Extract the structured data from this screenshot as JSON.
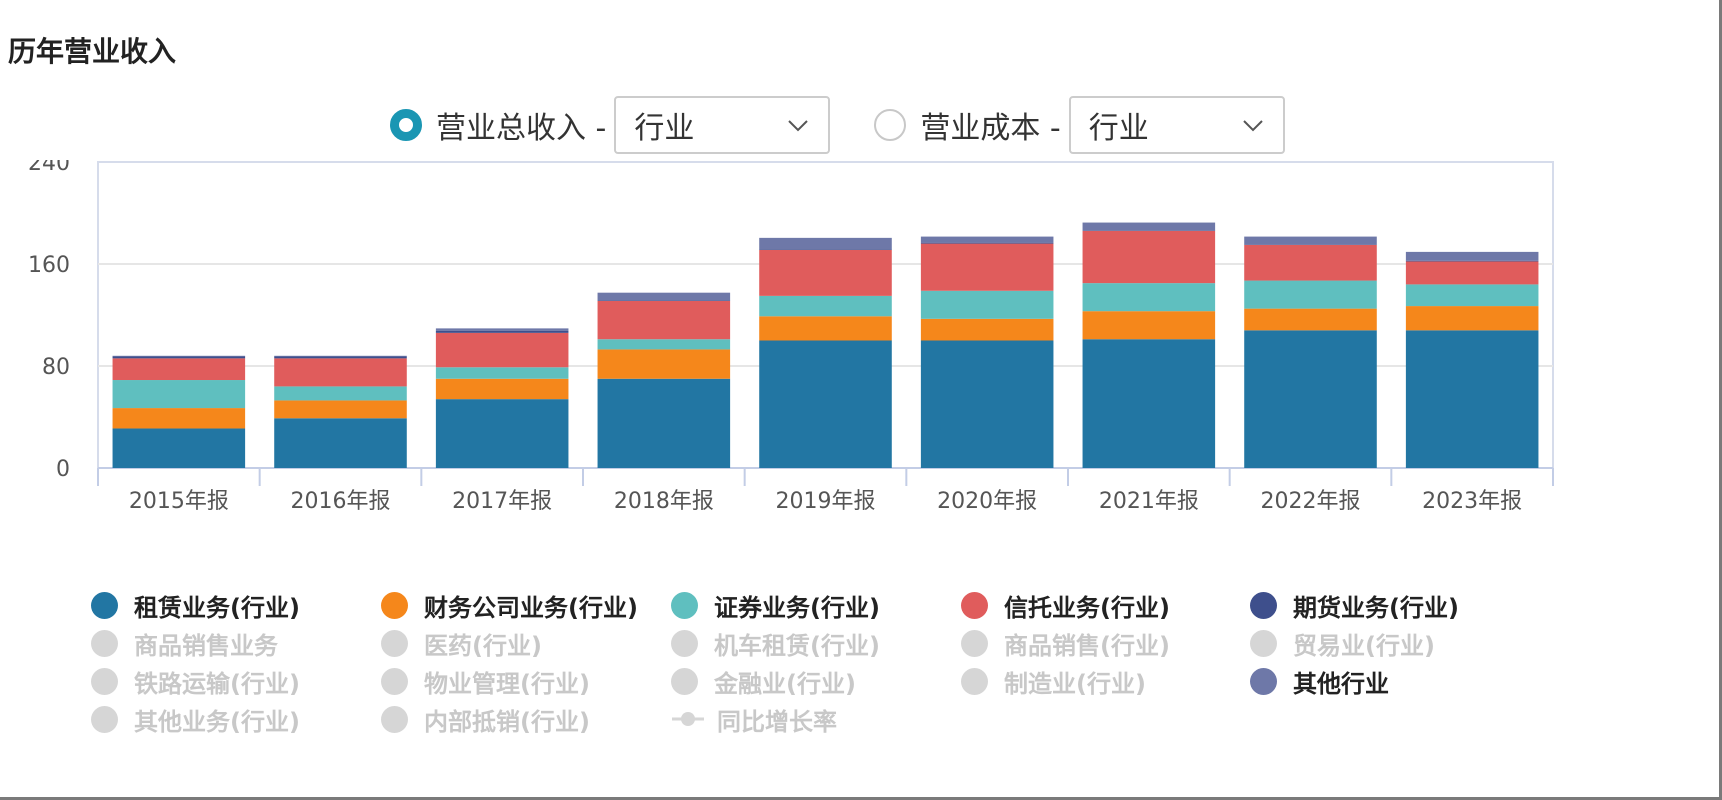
{
  "header": {
    "title": "历年营业收入"
  },
  "controls": {
    "option1": {
      "label": "营业总收入 -",
      "select_value": "行业",
      "selected": true
    },
    "option2": {
      "label": "营业成本 -",
      "select_value": "行业",
      "selected": false
    }
  },
  "chart_data": {
    "type": "bar",
    "stacked": true,
    "categories": [
      "2015年报",
      "2016年报",
      "2017年报",
      "2018年报",
      "2019年报",
      "2020年报",
      "2021年报",
      "2022年报",
      "2023年报"
    ],
    "ylim": [
      0,
      240
    ],
    "yticks": [
      "0",
      "80",
      "160",
      "240"
    ],
    "grid": true,
    "series": [
      {
        "name": "租赁业务(行业)",
        "color": "#2276a3",
        "values": [
          31,
          39,
          54,
          70,
          100,
          100,
          101,
          108,
          108
        ]
      },
      {
        "name": "财务公司业务(行业)",
        "color": "#f5871b",
        "values": [
          16,
          14,
          16,
          23,
          19,
          17,
          22,
          17,
          19
        ]
      },
      {
        "name": "证券业务(行业)",
        "color": "#5fbfbf",
        "values": [
          22,
          11,
          9,
          8,
          16,
          22,
          22,
          22,
          17
        ]
      },
      {
        "name": "信托业务(行业)",
        "color": "#e05c5c",
        "values": [
          17,
          22,
          27,
          30,
          36,
          37,
          41,
          28,
          18
        ]
      },
      {
        "name": "期货业务(行业)",
        "color": "#3e4f8c",
        "values": [
          1.5,
          1.5,
          1.5,
          0.5,
          0.5,
          0.5,
          0.5,
          0.5,
          0.5
        ]
      },
      {
        "name": "其他行业",
        "color": "#6e78a8",
        "values": [
          0.5,
          0.5,
          2,
          6,
          9,
          5,
          6,
          6,
          7
        ]
      }
    ]
  },
  "legend": {
    "items": [
      {
        "label": "租赁业务(行业)",
        "color": "#2276a3",
        "active": true
      },
      {
        "label": "财务公司业务(行业)",
        "color": "#f5871b",
        "active": true
      },
      {
        "label": "证券业务(行业)",
        "color": "#5fbfbf",
        "active": true
      },
      {
        "label": "信托业务(行业)",
        "color": "#e05c5c",
        "active": true
      },
      {
        "label": "期货业务(行业)",
        "color": "#3e4f8c",
        "active": true
      },
      {
        "label": "商品销售业务",
        "color": "#d6d6d6",
        "active": false
      },
      {
        "label": "医药(行业)",
        "color": "#d6d6d6",
        "active": false
      },
      {
        "label": "机车租赁(行业)",
        "color": "#d6d6d6",
        "active": false
      },
      {
        "label": "商品销售(行业)",
        "color": "#d6d6d6",
        "active": false
      },
      {
        "label": "贸易业(行业)",
        "color": "#d6d6d6",
        "active": false
      },
      {
        "label": "铁路运输(行业)",
        "color": "#d6d6d6",
        "active": false
      },
      {
        "label": "物业管理(行业)",
        "color": "#d6d6d6",
        "active": false
      },
      {
        "label": "金融业(行业)",
        "color": "#d6d6d6",
        "active": false
      },
      {
        "label": "制造业(行业)",
        "color": "#d6d6d6",
        "active": false
      },
      {
        "label": "其他行业",
        "color": "#6e78a8",
        "active": true
      },
      {
        "label": "其他业务(行业)",
        "color": "#d6d6d6",
        "active": false
      },
      {
        "label": "内部抵销(行业)",
        "color": "#d6d6d6",
        "active": false
      },
      {
        "label": "同比增长率",
        "color": "#d6d6d6",
        "active": false,
        "icon": "line-marker-icon"
      }
    ]
  }
}
